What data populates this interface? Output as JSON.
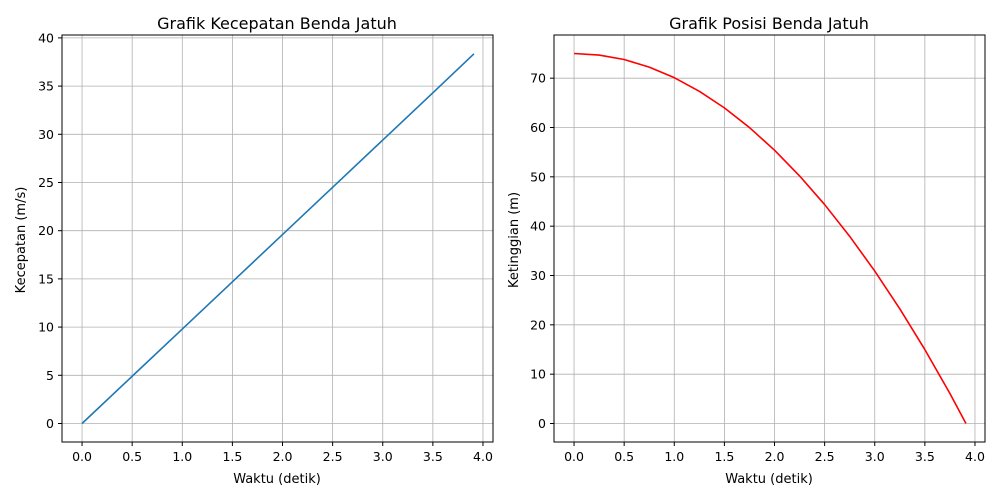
{
  "chart_data": [
    {
      "type": "line",
      "title": "Grafik Kecepatan Benda Jatuh",
      "xlabel": "Waktu (detik)",
      "ylabel": "Kecepatan (m/s)",
      "xlim": [
        -0.2,
        4.1
      ],
      "ylim": [
        -1.92,
        40.3
      ],
      "xticks": [
        "0.0",
        "0.5",
        "1.0",
        "1.5",
        "2.0",
        "2.5",
        "3.0",
        "3.5",
        "4.0"
      ],
      "yticks": [
        "0",
        "5",
        "10",
        "15",
        "20",
        "25",
        "30",
        "35",
        "40"
      ],
      "grid": true,
      "series": [
        {
          "color": "#1f77b4",
          "x": [
            0,
            0.5,
            1.0,
            1.5,
            2.0,
            2.5,
            3.0,
            3.5,
            3.91
          ],
          "y": [
            0,
            4.9,
            9.8,
            14.7,
            19.6,
            24.5,
            29.4,
            34.3,
            38.35
          ]
        }
      ]
    },
    {
      "type": "line",
      "title": "Grafik Posisi Benda Jatuh",
      "xlabel": "Waktu (detik)",
      "ylabel": "Ketinggian (m)",
      "xlim": [
        -0.2,
        4.1
      ],
      "ylim": [
        -3.75,
        78.75
      ],
      "xticks": [
        "0.0",
        "0.5",
        "1.0",
        "1.5",
        "2.0",
        "2.5",
        "3.0",
        "3.5",
        "4.0"
      ],
      "yticks": [
        "0",
        "10",
        "20",
        "30",
        "40",
        "50",
        "60",
        "70"
      ],
      "grid": true,
      "series": [
        {
          "color": "#ff0000",
          "x": [
            0,
            0.25,
            0.5,
            0.75,
            1.0,
            1.25,
            1.5,
            1.75,
            2.0,
            2.25,
            2.5,
            2.75,
            3.0,
            3.25,
            3.5,
            3.75,
            3.91
          ],
          "y": [
            75,
            74.69,
            73.78,
            72.24,
            70.1,
            67.34,
            63.98,
            59.99,
            55.4,
            50.19,
            44.38,
            37.94,
            30.9,
            23.24,
            14.98,
            6.09,
            0
          ]
        }
      ]
    }
  ]
}
